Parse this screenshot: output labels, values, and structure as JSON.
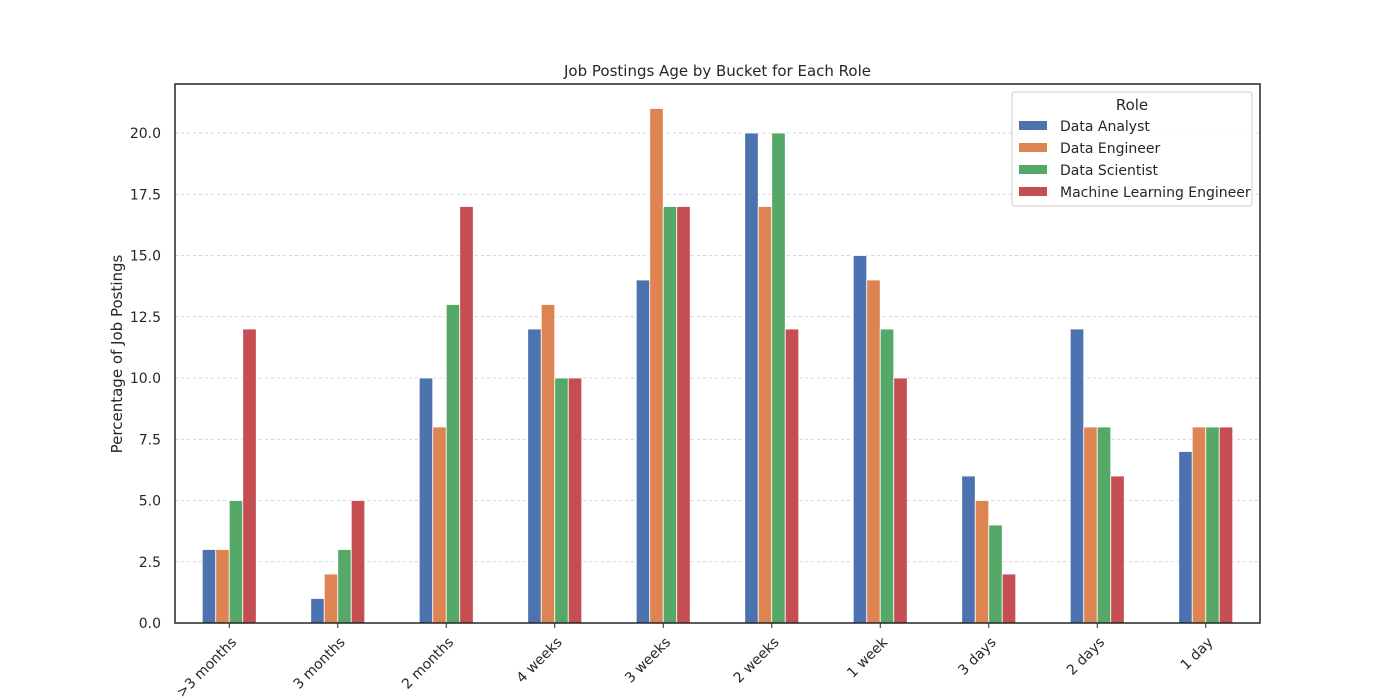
{
  "chart_data": {
    "type": "bar",
    "title": "Job Postings Age by Bucket for Each Role",
    "xlabel": "",
    "ylabel": "Percentage of Job Postings",
    "ylim": [
      0,
      22
    ],
    "yticks": [
      "0.0",
      "2.5",
      "5.0",
      "7.5",
      "10.0",
      "12.5",
      "15.0",
      "17.5",
      "20.0"
    ],
    "grid": "y-dashed",
    "legend_title": "Role",
    "legend_position": "top-right",
    "categories": [
      ">3 months",
      "3 months",
      "2 months",
      "4 weeks",
      "3 weeks",
      "2 weeks",
      "1 week",
      "3 days",
      "2 days",
      "1 day"
    ],
    "series": [
      {
        "name": "Data Analyst",
        "color": "#4c72b0",
        "values": [
          3,
          1,
          10,
          12,
          14,
          20,
          15,
          6,
          12,
          7
        ]
      },
      {
        "name": "Data Engineer",
        "color": "#dd8452",
        "values": [
          3,
          2,
          8,
          13,
          21,
          17,
          14,
          5,
          8,
          8
        ]
      },
      {
        "name": "Data Scientist",
        "color": "#55a868",
        "values": [
          5,
          3,
          13,
          10,
          17,
          20,
          12,
          4,
          8,
          8
        ]
      },
      {
        "name": "Machine Learning Engineer",
        "color": "#c44e52",
        "values": [
          12,
          5,
          17,
          10,
          17,
          12,
          10,
          2,
          6,
          8
        ]
      }
    ]
  }
}
